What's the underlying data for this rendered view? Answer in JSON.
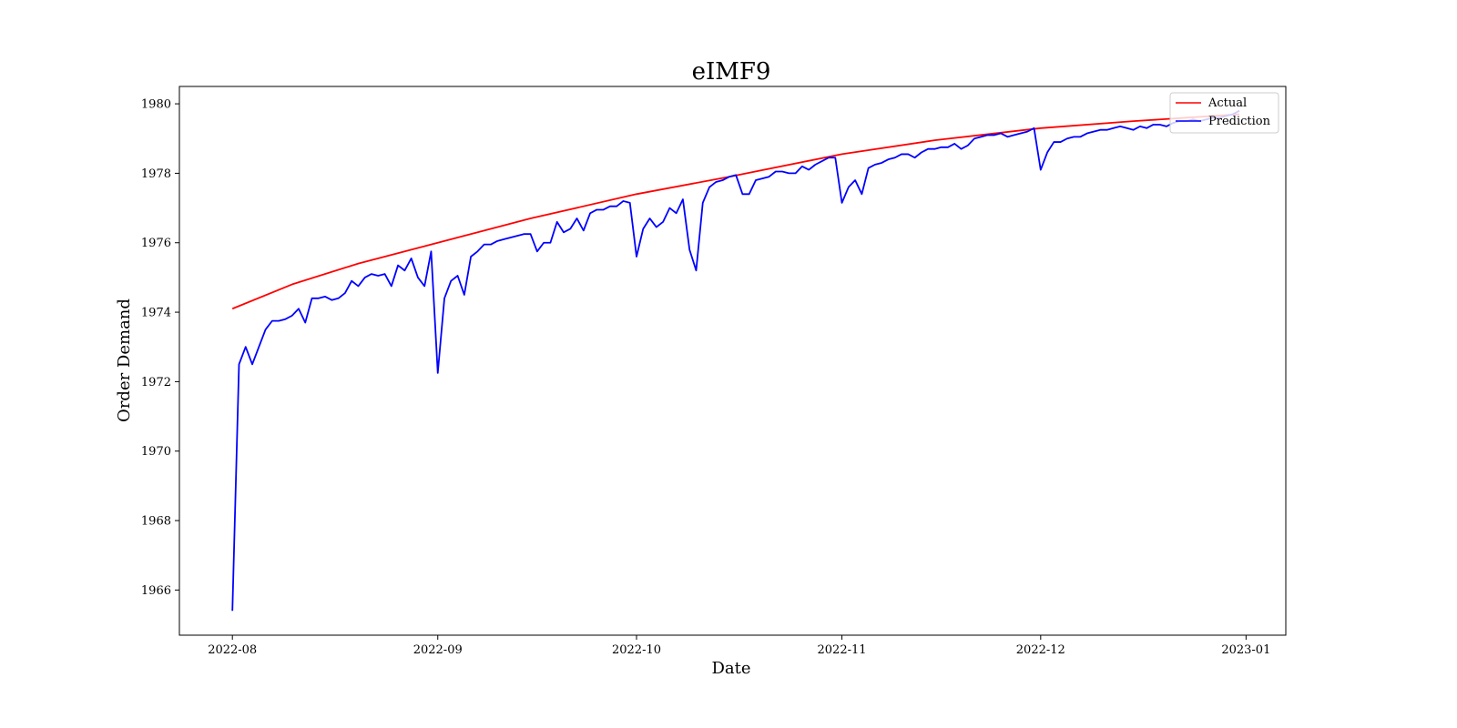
{
  "chart_data": {
    "type": "line",
    "title": "eIMF9",
    "xlabel": "Date",
    "ylabel": "Order Demand",
    "x_range": [
      "2022-07-24",
      "2023-01-07"
    ],
    "ylim": [
      1964.7,
      1980.5
    ],
    "x_ticks": [
      "2022-08-01",
      "2022-09-01",
      "2022-10-01",
      "2022-11-01",
      "2022-12-01",
      "2023-01-01"
    ],
    "x_tick_labels": [
      "2022-08",
      "2022-09",
      "2022-10",
      "2022-11",
      "2022-12",
      "2023-01"
    ],
    "y_ticks": [
      1966,
      1968,
      1970,
      1972,
      1974,
      1976,
      1978,
      1980
    ],
    "y_tick_labels": [
      "1966",
      "1968",
      "1970",
      "1972",
      "1974",
      "1976",
      "1978",
      "1980"
    ],
    "legend_position": "top-right",
    "grid": false,
    "series": [
      {
        "name": "Actual",
        "color": "#ff0000",
        "points": [
          [
            "2022-08-01",
            1974.1
          ],
          [
            "2022-08-10",
            1974.8
          ],
          [
            "2022-08-20",
            1975.4
          ],
          [
            "2022-09-01",
            1976.0
          ],
          [
            "2022-09-15",
            1976.7
          ],
          [
            "2022-10-01",
            1977.4
          ],
          [
            "2022-10-15",
            1977.9
          ],
          [
            "2022-11-01",
            1978.55
          ],
          [
            "2022-11-15",
            1978.95
          ],
          [
            "2022-12-01",
            1979.3
          ],
          [
            "2022-12-15",
            1979.5
          ],
          [
            "2022-12-31",
            1979.7
          ]
        ]
      },
      {
        "name": "Prediction",
        "color": "#0000ff",
        "points": [
          [
            "2022-08-01",
            1965.4
          ],
          [
            "2022-08-02",
            1972.5
          ],
          [
            "2022-08-03",
            1973.0
          ],
          [
            "2022-08-04",
            1972.5
          ],
          [
            "2022-08-05",
            1973.0
          ],
          [
            "2022-08-06",
            1973.5
          ],
          [
            "2022-08-07",
            1973.75
          ],
          [
            "2022-08-08",
            1973.75
          ],
          [
            "2022-08-09",
            1973.8
          ],
          [
            "2022-08-10",
            1973.9
          ],
          [
            "2022-08-11",
            1974.1
          ],
          [
            "2022-08-12",
            1973.7
          ],
          [
            "2022-08-13",
            1974.4
          ],
          [
            "2022-08-14",
            1974.4
          ],
          [
            "2022-08-15",
            1974.45
          ],
          [
            "2022-08-16",
            1974.35
          ],
          [
            "2022-08-17",
            1974.4
          ],
          [
            "2022-08-18",
            1974.55
          ],
          [
            "2022-08-19",
            1974.9
          ],
          [
            "2022-08-20",
            1974.75
          ],
          [
            "2022-08-21",
            1975.0
          ],
          [
            "2022-08-22",
            1975.1
          ],
          [
            "2022-08-23",
            1975.05
          ],
          [
            "2022-08-24",
            1975.1
          ],
          [
            "2022-08-25",
            1974.75
          ],
          [
            "2022-08-26",
            1975.35
          ],
          [
            "2022-08-27",
            1975.2
          ],
          [
            "2022-08-28",
            1975.55
          ],
          [
            "2022-08-29",
            1975.0
          ],
          [
            "2022-08-30",
            1974.75
          ],
          [
            "2022-08-31",
            1975.75
          ],
          [
            "2022-09-01",
            1972.25
          ],
          [
            "2022-09-02",
            1974.4
          ],
          [
            "2022-09-03",
            1974.9
          ],
          [
            "2022-09-04",
            1975.05
          ],
          [
            "2022-09-05",
            1974.5
          ],
          [
            "2022-09-06",
            1975.6
          ],
          [
            "2022-09-07",
            1975.75
          ],
          [
            "2022-09-08",
            1975.95
          ],
          [
            "2022-09-09",
            1975.95
          ],
          [
            "2022-09-10",
            1976.05
          ],
          [
            "2022-09-11",
            1976.1
          ],
          [
            "2022-09-12",
            1976.15
          ],
          [
            "2022-09-13",
            1976.2
          ],
          [
            "2022-09-14",
            1976.25
          ],
          [
            "2022-09-15",
            1976.25
          ],
          [
            "2022-09-16",
            1975.75
          ],
          [
            "2022-09-17",
            1976.0
          ],
          [
            "2022-09-18",
            1976.0
          ],
          [
            "2022-09-19",
            1976.6
          ],
          [
            "2022-09-20",
            1976.3
          ],
          [
            "2022-09-21",
            1976.4
          ],
          [
            "2022-09-22",
            1976.7
          ],
          [
            "2022-09-23",
            1976.35
          ],
          [
            "2022-09-24",
            1976.85
          ],
          [
            "2022-09-25",
            1976.95
          ],
          [
            "2022-09-26",
            1976.95
          ],
          [
            "2022-09-27",
            1977.05
          ],
          [
            "2022-09-28",
            1977.05
          ],
          [
            "2022-09-29",
            1977.2
          ],
          [
            "2022-09-30",
            1977.15
          ],
          [
            "2022-10-01",
            1975.6
          ],
          [
            "2022-10-02",
            1976.4
          ],
          [
            "2022-10-03",
            1976.7
          ],
          [
            "2022-10-04",
            1976.45
          ],
          [
            "2022-10-05",
            1976.6
          ],
          [
            "2022-10-06",
            1977.0
          ],
          [
            "2022-10-07",
            1976.85
          ],
          [
            "2022-10-08",
            1977.25
          ],
          [
            "2022-10-09",
            1975.8
          ],
          [
            "2022-10-10",
            1975.2
          ],
          [
            "2022-10-11",
            1977.15
          ],
          [
            "2022-10-12",
            1977.6
          ],
          [
            "2022-10-13",
            1977.75
          ],
          [
            "2022-10-14",
            1977.8
          ],
          [
            "2022-10-15",
            1977.9
          ],
          [
            "2022-10-16",
            1977.95
          ],
          [
            "2022-10-17",
            1977.4
          ],
          [
            "2022-10-18",
            1977.4
          ],
          [
            "2022-10-19",
            1977.8
          ],
          [
            "2022-10-20",
            1977.85
          ],
          [
            "2022-10-21",
            1977.9
          ],
          [
            "2022-10-22",
            1978.05
          ],
          [
            "2022-10-23",
            1978.05
          ],
          [
            "2022-10-24",
            1978.0
          ],
          [
            "2022-10-25",
            1978.0
          ],
          [
            "2022-10-26",
            1978.2
          ],
          [
            "2022-10-27",
            1978.1
          ],
          [
            "2022-10-28",
            1978.25
          ],
          [
            "2022-10-29",
            1978.35
          ],
          [
            "2022-10-30",
            1978.45
          ],
          [
            "2022-10-31",
            1978.45
          ],
          [
            "2022-11-01",
            1977.15
          ],
          [
            "2022-11-02",
            1977.6
          ],
          [
            "2022-11-03",
            1977.8
          ],
          [
            "2022-11-04",
            1977.4
          ],
          [
            "2022-11-05",
            1978.15
          ],
          [
            "2022-11-06",
            1978.25
          ],
          [
            "2022-11-07",
            1978.3
          ],
          [
            "2022-11-08",
            1978.4
          ],
          [
            "2022-11-09",
            1978.45
          ],
          [
            "2022-11-10",
            1978.55
          ],
          [
            "2022-11-11",
            1978.55
          ],
          [
            "2022-11-12",
            1978.45
          ],
          [
            "2022-11-13",
            1978.6
          ],
          [
            "2022-11-14",
            1978.7
          ],
          [
            "2022-11-15",
            1978.7
          ],
          [
            "2022-11-16",
            1978.75
          ],
          [
            "2022-11-17",
            1978.75
          ],
          [
            "2022-11-18",
            1978.85
          ],
          [
            "2022-11-19",
            1978.7
          ],
          [
            "2022-11-20",
            1978.8
          ],
          [
            "2022-11-21",
            1979.0
          ],
          [
            "2022-11-22",
            1979.05
          ],
          [
            "2022-11-23",
            1979.1
          ],
          [
            "2022-11-24",
            1979.1
          ],
          [
            "2022-11-25",
            1979.15
          ],
          [
            "2022-11-26",
            1979.05
          ],
          [
            "2022-11-27",
            1979.1
          ],
          [
            "2022-11-28",
            1979.15
          ],
          [
            "2022-11-29",
            1979.2
          ],
          [
            "2022-11-30",
            1979.3
          ],
          [
            "2022-12-01",
            1978.1
          ],
          [
            "2022-12-02",
            1978.6
          ],
          [
            "2022-12-03",
            1978.9
          ],
          [
            "2022-12-04",
            1978.9
          ],
          [
            "2022-12-05",
            1979.0
          ],
          [
            "2022-12-06",
            1979.05
          ],
          [
            "2022-12-07",
            1979.05
          ],
          [
            "2022-12-08",
            1979.15
          ],
          [
            "2022-12-09",
            1979.2
          ],
          [
            "2022-12-10",
            1979.25
          ],
          [
            "2022-12-11",
            1979.25
          ],
          [
            "2022-12-12",
            1979.3
          ],
          [
            "2022-12-13",
            1979.35
          ],
          [
            "2022-12-14",
            1979.3
          ],
          [
            "2022-12-15",
            1979.25
          ],
          [
            "2022-12-16",
            1979.35
          ],
          [
            "2022-12-17",
            1979.3
          ],
          [
            "2022-12-18",
            1979.4
          ],
          [
            "2022-12-19",
            1979.4
          ],
          [
            "2022-12-20",
            1979.35
          ],
          [
            "2022-12-21",
            1979.45
          ],
          [
            "2022-12-22",
            1979.5
          ],
          [
            "2022-12-23",
            1979.5
          ],
          [
            "2022-12-24",
            1979.55
          ],
          [
            "2022-12-25",
            1979.5
          ],
          [
            "2022-12-26",
            1979.55
          ],
          [
            "2022-12-27",
            1979.6
          ],
          [
            "2022-12-28",
            1979.6
          ],
          [
            "2022-12-29",
            1979.65
          ],
          [
            "2022-12-30",
            1979.7
          ],
          [
            "2022-12-31",
            1979.8
          ]
        ]
      }
    ]
  }
}
